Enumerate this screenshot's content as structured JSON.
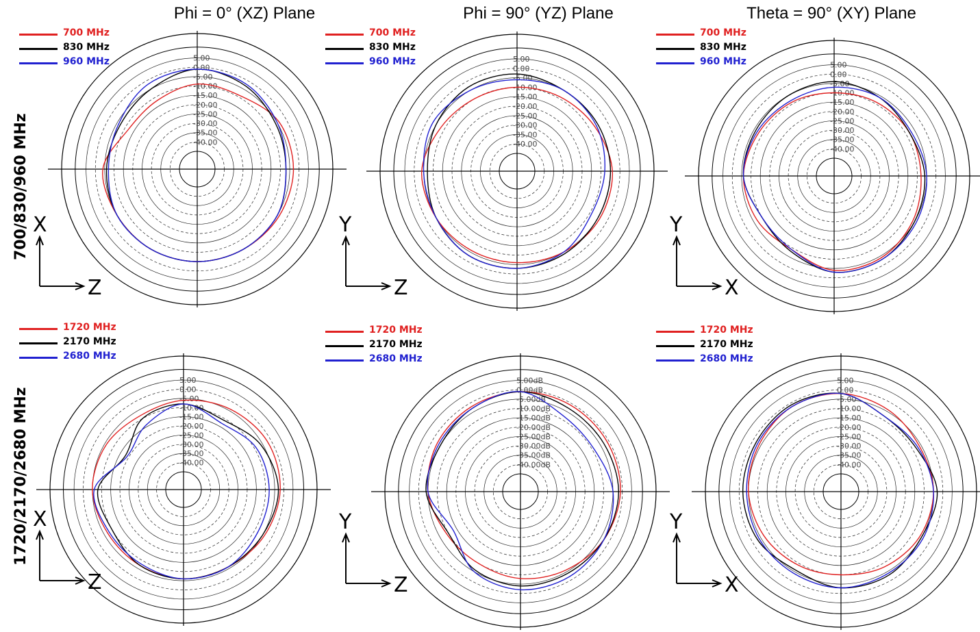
{
  "column_titles": [
    "Phi = 0° (XZ) Plane",
    "Phi = 90° (YZ) Plane",
    "Theta = 90° (XY) Plane"
  ],
  "row_labels": [
    "700/830/960 MHz",
    "1720/2170/2680 MHz"
  ],
  "colors": {
    "red": "#e02020",
    "black": "#000000",
    "blue": "#2020d0"
  },
  "chart_data": [
    {
      "type": "polar",
      "plane": "XZ",
      "row": 0,
      "col": 0,
      "title": "Phi = 0° (XZ) Plane",
      "rlim": [
        -45,
        5
      ],
      "grid": true,
      "legend_position": "top-left",
      "tick_labels": [
        "5.00",
        "0.00",
        "-5.00",
        "-10.00",
        "-15.00",
        "-20.00",
        "-25.00",
        "-30.00",
        "-35.00",
        "-40.00"
      ],
      "axis_labels": {
        "vertical": "X",
        "horizontal": "Z"
      },
      "series": [
        {
          "name": "700 MHz",
          "color": "#e02020",
          "angle": [
            0,
            30,
            60,
            90,
            120,
            150,
            180,
            210,
            240,
            270,
            300,
            330
          ],
          "gain_db": [
            -9,
            -9,
            -4,
            -3,
            -4,
            -5,
            -5,
            -5,
            -5,
            -4,
            -12,
            -12
          ]
        },
        {
          "name": "830 MHz",
          "color": "#000000",
          "angle": [
            0,
            30,
            60,
            90,
            120,
            150,
            180,
            210,
            240,
            270,
            300,
            330
          ],
          "gain_db": [
            -1,
            -3,
            -6,
            -7,
            -5,
            -5,
            -5,
            -5,
            -5,
            -6,
            -7,
            -5
          ]
        },
        {
          "name": "960 MHz",
          "color": "#2020d0",
          "angle": [
            0,
            30,
            60,
            90,
            120,
            150,
            180,
            210,
            240,
            270,
            300,
            330
          ],
          "gain_db": [
            -1,
            -2,
            -5,
            -7,
            -5,
            -5,
            -5,
            -5,
            -5,
            -7,
            -6,
            -2
          ]
        }
      ]
    },
    {
      "type": "polar",
      "plane": "YZ",
      "row": 0,
      "col": 1,
      "title": "Phi = 90° (YZ) Plane",
      "rlim": [
        -45,
        5
      ],
      "grid": true,
      "legend_position": "top-left",
      "tick_labels": [
        "5.00",
        "0.00",
        "-5.00",
        "-10.00",
        "-15.00",
        "-20.00",
        "-25.00",
        "-30.00",
        "-35.00",
        "-40.00"
      ],
      "axis_labels": {
        "vertical": "Y",
        "horizontal": "Z"
      },
      "series": [
        {
          "name": "700 MHz",
          "color": "#e02020",
          "angle": [
            0,
            30,
            60,
            90,
            120,
            150,
            180,
            210,
            240,
            270,
            300,
            330
          ],
          "gain_db": [
            -10,
            -9,
            -7,
            -4,
            -4,
            -5,
            -6,
            -6,
            -5,
            -4,
            -8,
            -10
          ]
        },
        {
          "name": "830 MHz",
          "color": "#000000",
          "angle": [
            0,
            30,
            60,
            90,
            120,
            150,
            180,
            210,
            240,
            270,
            300,
            330
          ],
          "gain_db": [
            -3,
            -5,
            -5,
            -5,
            -5,
            -4,
            -3,
            -3,
            -5,
            -7,
            -5,
            -3
          ]
        },
        {
          "name": "960 MHz",
          "color": "#2020d0",
          "angle": [
            0,
            30,
            60,
            90,
            120,
            150,
            180,
            210,
            240,
            270,
            300,
            330
          ],
          "gain_db": [
            -6,
            -5,
            -6,
            -8,
            -9,
            -5,
            -3,
            -3,
            -5,
            -5,
            -3,
            -5
          ]
        }
      ]
    },
    {
      "type": "polar",
      "plane": "XY",
      "row": 0,
      "col": 2,
      "title": "Theta = 90° (XY) Plane",
      "rlim": [
        -45,
        5
      ],
      "grid": true,
      "legend_position": "top-left",
      "tick_labels": [
        "5.00",
        "0.00",
        "-5.00",
        "-10.00",
        "-15.00",
        "-20.00",
        "-25.00",
        "-30.00",
        "-35.00",
        "-40.00"
      ],
      "axis_labels": {
        "vertical": "Y",
        "horizontal": "X"
      },
      "series": [
        {
          "name": "700 MHz",
          "color": "#e02020",
          "angle": [
            0,
            30,
            60,
            90,
            120,
            150,
            180,
            210,
            240,
            270,
            300,
            330
          ],
          "gain_db": [
            -10,
            -9,
            -8,
            -8,
            -6,
            -4,
            -4,
            -9,
            -7,
            -6,
            -8,
            -9
          ]
        },
        {
          "name": "830 MHz",
          "color": "#000000",
          "angle": [
            0,
            30,
            60,
            90,
            120,
            150,
            180,
            210,
            240,
            270,
            300,
            330
          ],
          "gain_db": [
            -4,
            -6,
            -8,
            -6,
            -5,
            -3,
            -3,
            -8,
            -10,
            -6,
            -6,
            -5
          ]
        },
        {
          "name": "960 MHz",
          "color": "#2020d0",
          "angle": [
            0,
            30,
            60,
            90,
            120,
            150,
            180,
            210,
            240,
            270,
            300,
            330
          ],
          "gain_db": [
            -7,
            -6,
            -7,
            -5,
            -4,
            -3,
            -3,
            -9,
            -10,
            -6,
            -7,
            -8
          ]
        }
      ]
    },
    {
      "type": "polar",
      "plane": "XZ",
      "row": 1,
      "col": 0,
      "title": "Phi = 0° (XZ) Plane",
      "rlim": [
        -45,
        5
      ],
      "grid": true,
      "legend_position": "top-left",
      "tick_labels": [
        "5.00",
        "0.00",
        "-5.00",
        "-10.00",
        "-15.00",
        "-20.00",
        "-25.00",
        "-30.00",
        "-35.00",
        "-40.00"
      ],
      "axis_labels": {
        "vertical": "X",
        "horizontal": "Z"
      },
      "series": [
        {
          "name": "1720 MHz",
          "color": "#e02020",
          "angle": [
            0,
            30,
            60,
            90,
            120,
            150,
            180,
            210,
            240,
            270,
            300,
            330
          ],
          "gain_db": [
            -6,
            -4,
            -2,
            -2,
            -4,
            -6,
            -6,
            -7,
            -7,
            -5,
            -6,
            -8
          ]
        },
        {
          "name": "2170 MHz",
          "color": "#000000",
          "angle": [
            0,
            30,
            60,
            90,
            120,
            150,
            180,
            210,
            240,
            270,
            300,
            330
          ],
          "gain_db": [
            -8,
            -11,
            -6,
            -3,
            -5,
            -6,
            -6,
            -7,
            -10,
            -8,
            -18,
            -10
          ]
        },
        {
          "name": "2680 MHz",
          "color": "#2020d0",
          "angle": [
            0,
            30,
            60,
            90,
            120,
            150,
            180,
            210,
            240,
            270,
            300,
            330
          ],
          "gain_db": [
            -8,
            -13,
            -9,
            -8,
            -8,
            -6,
            -6,
            -8,
            -8,
            -6,
            -19,
            -14
          ]
        }
      ]
    },
    {
      "type": "polar",
      "plane": "YZ",
      "row": 1,
      "col": 1,
      "title": "Phi = 90° (YZ) Plane",
      "rlim": [
        -45,
        5
      ],
      "grid": true,
      "legend_position": "top-left",
      "tick_labels": [
        "5.00dB",
        "0.00dB",
        "-5.00dB",
        "-10.00dB",
        "-15.00dB",
        "-20.00dB",
        "-25.00dB",
        "-30.00dB",
        "-35.00dB",
        "-40.00dB"
      ],
      "axis_labels": {
        "vertical": "Y",
        "horizontal": "Z"
      },
      "series": [
        {
          "name": "1720 MHz",
          "color": "#e02020",
          "angle": [
            0,
            30,
            60,
            90,
            120,
            150,
            180,
            210,
            240,
            270,
            300,
            330
          ],
          "gain_db": [
            -1,
            -1,
            -1,
            -1,
            -3,
            -6,
            -8,
            -10,
            -9,
            -5,
            -3,
            -2
          ]
        },
        {
          "name": "2170 MHz",
          "color": "#000000",
          "angle": [
            0,
            30,
            60,
            90,
            120,
            150,
            180,
            210,
            240,
            270,
            300,
            330
          ],
          "gain_db": [
            -1,
            -3,
            -3,
            -2,
            -3,
            -4,
            -4,
            -6,
            -10,
            -4,
            -5,
            -3
          ]
        },
        {
          "name": "2680 MHz",
          "color": "#2020d0",
          "angle": [
            0,
            30,
            60,
            90,
            120,
            150,
            180,
            210,
            240,
            270,
            300,
            330
          ],
          "gain_db": [
            -1,
            -8,
            -9,
            -5,
            -3,
            -2,
            -2,
            -5,
            -13,
            -5,
            -4,
            -3
          ]
        }
      ]
    },
    {
      "type": "polar",
      "plane": "XY",
      "row": 1,
      "col": 2,
      "title": "Theta = 90° (XY) Plane",
      "rlim": [
        -45,
        5
      ],
      "grid": true,
      "legend_position": "top-left",
      "tick_labels": [
        "5.00",
        "0.00",
        "-5.00",
        "-10.00",
        "-15.00",
        "-20.00",
        "-25.00",
        "-30.00",
        "-35.00",
        "-40.00"
      ],
      "axis_labels": {
        "vertical": "Y",
        "horizontal": "X"
      },
      "series": [
        {
          "name": "1720 MHz",
          "color": "#e02020",
          "angle": [
            0,
            30,
            60,
            90,
            120,
            150,
            180,
            210,
            240,
            270,
            300,
            330
          ],
          "gain_db": [
            -2,
            -4,
            -6,
            -5,
            -6,
            -8,
            -10,
            -9,
            -7,
            -5,
            -4,
            -2
          ]
        },
        {
          "name": "2170 MHz",
          "color": "#000000",
          "angle": [
            0,
            30,
            60,
            90,
            120,
            150,
            180,
            210,
            240,
            270,
            300,
            330
          ],
          "gain_db": [
            -2,
            -8,
            -8,
            -3,
            -5,
            -3,
            -3,
            -6,
            -3,
            -2,
            -2,
            -1
          ]
        },
        {
          "name": "2680 MHz",
          "color": "#2020d0",
          "angle": [
            0,
            30,
            60,
            90,
            120,
            150,
            180,
            210,
            240,
            270,
            300,
            330
          ],
          "gain_db": [
            -2,
            -8,
            -7,
            -5,
            -4,
            -4,
            -3,
            -4,
            -4,
            -4,
            -3,
            -2
          ]
        }
      ]
    }
  ]
}
